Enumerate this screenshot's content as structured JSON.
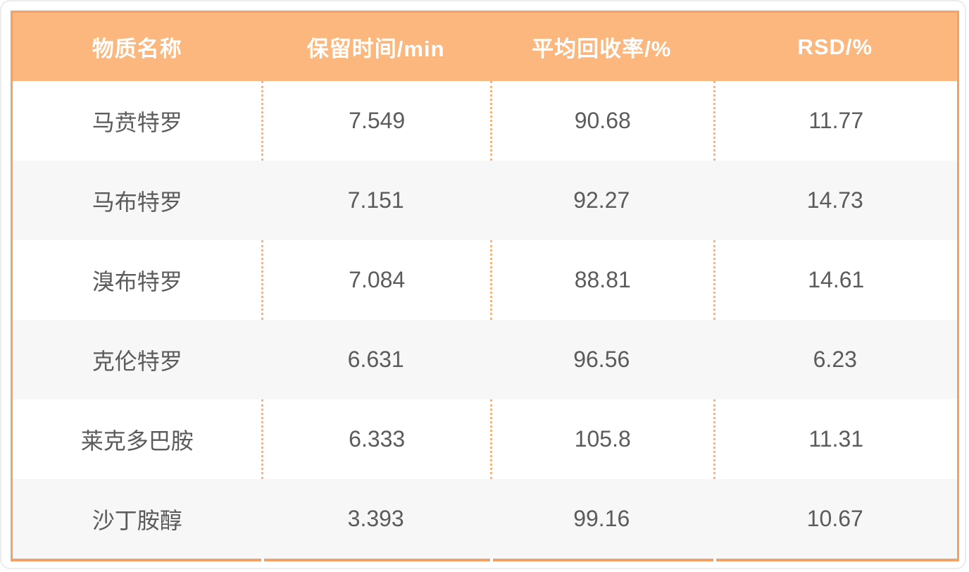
{
  "chart_data": {
    "type": "table",
    "columns": [
      "物质名称",
      "保留时间/min",
      "平均回收率/%",
      "RSD/%"
    ],
    "rows": [
      [
        "马贲特罗",
        "7.549",
        "90.68",
        "11.77"
      ],
      [
        "马布特罗",
        "7.151",
        "92.27",
        "14.73"
      ],
      [
        "溴布特罗",
        "7.084",
        "88.81",
        "14.61"
      ],
      [
        "克伦特罗",
        "6.631",
        "96.56",
        "6.23"
      ],
      [
        "莱克多巴胺",
        "6.333",
        "105.8",
        "11.31"
      ],
      [
        "沙丁胺醇",
        "3.393",
        "99.16",
        "10.67"
      ]
    ],
    "layout": {
      "legend": "none",
      "grid": "dotted-column-separators-on-white-rows",
      "zebra_striping": true
    }
  },
  "colors": {
    "header_bg": "#fbb77e",
    "header_text": "#ffffff",
    "table_border": "#f0a269",
    "dotted_separator": "#f5b285",
    "alt_row_bg": "#f7f7f7",
    "body_text": "#5b5b5b",
    "frame_border": "#ececec"
  }
}
